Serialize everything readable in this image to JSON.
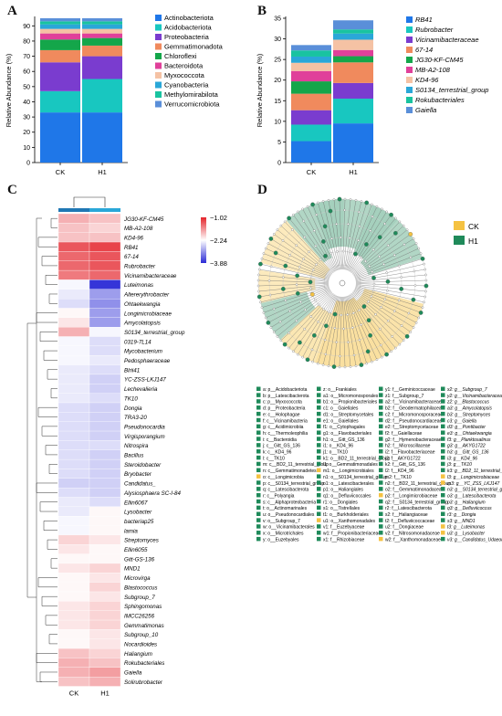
{
  "panel_letters": [
    "A",
    "B",
    "C",
    "D"
  ],
  "chart_data": [
    {
      "type": "bar",
      "subtype": "stacked",
      "panel": "A",
      "categories": [
        "CK",
        "H1"
      ],
      "ylabel": "Relative Abundance (%)",
      "ylim": [
        0,
        95
      ],
      "yticks": [
        0,
        10,
        20,
        30,
        40,
        50,
        60,
        70,
        80,
        90
      ],
      "legend_position": "right",
      "series": [
        {
          "name": "Actinobacteriota",
          "color": "#1f77e8",
          "values": [
            33,
            33
          ]
        },
        {
          "name": "Acidobacteriota",
          "color": "#18c7c0",
          "values": [
            14,
            22
          ]
        },
        {
          "name": "Proteobacteria",
          "color": "#7a3ccf",
          "values": [
            19,
            15
          ]
        },
        {
          "name": "Gemmatimonadota",
          "color": "#f08a5d",
          "values": [
            8,
            7
          ]
        },
        {
          "name": "Chloroflexi",
          "color": "#14a64a",
          "values": [
            7,
            5
          ]
        },
        {
          "name": "Bacteroidota",
          "color": "#e0409a",
          "values": [
            4,
            3
          ]
        },
        {
          "name": "Myxococcota",
          "color": "#f5c2a4",
          "values": [
            3,
            3
          ]
        },
        {
          "name": "Cyanobacteria",
          "color": "#2aa7d8",
          "values": [
            3,
            3
          ]
        },
        {
          "name": "Methylomirabilota",
          "color": "#19c3a0",
          "values": [
            2,
            2
          ]
        },
        {
          "name": "Verrucomicrobiota",
          "color": "#5a8fd9",
          "values": [
            2,
            2
          ]
        }
      ]
    },
    {
      "type": "bar",
      "subtype": "stacked",
      "panel": "B",
      "categories": [
        "CK",
        "H1"
      ],
      "ylabel": "Relative Abundance (%)",
      "ylim": [
        0,
        35
      ],
      "yticks": [
        0,
        5,
        10,
        15,
        20,
        25,
        30,
        35
      ],
      "legend_position": "right",
      "series": [
        {
          "name": "RB41",
          "color": "#1f77e8",
          "values": [
            5.2,
            9.5
          ]
        },
        {
          "name": "Rubrobacter",
          "color": "#18c7c0",
          "values": [
            4.0,
            6.0
          ]
        },
        {
          "name": "Vicinamibacteraceae",
          "color": "#7a3ccf",
          "values": [
            3.5,
            3.8
          ]
        },
        {
          "name": "67-14",
          "color": "#f08a5d",
          "values": [
            4.0,
            5.0
          ]
        },
        {
          "name": "JG30-KF-CM45",
          "color": "#14a64a",
          "values": [
            3.0,
            1.5
          ]
        },
        {
          "name": "MB-A2-108",
          "color": "#e0409a",
          "values": [
            2.5,
            1.5
          ]
        },
        {
          "name": "KD4-96",
          "color": "#f5c2a4",
          "values": [
            2.0,
            2.5
          ]
        },
        {
          "name": "S0134_terrestrial_group",
          "color": "#2aa7d8",
          "values": [
            1.5,
            1.5
          ]
        },
        {
          "name": "Rokubacteriales",
          "color": "#19c3a0",
          "values": [
            1.5,
            1.0
          ]
        },
        {
          "name": "Gaiella",
          "color": "#5a8fd9",
          "values": [
            1.3,
            2.2
          ]
        }
      ]
    },
    {
      "type": "heatmap",
      "panel": "C",
      "columns": [
        "CK",
        "H1"
      ],
      "colorbar_ticks": [
        -1.02,
        -2.24,
        -3.88
      ],
      "colorbar_colors": [
        "#e4242b",
        "#ffffff",
        "#2b2bd6"
      ],
      "rows": [
        {
          "name": "JG30-KF-CM45",
          "values": [
            -1.8,
            -1.9
          ]
        },
        {
          "name": "MB-A2-108",
          "values": [
            -1.9,
            -2.0
          ]
        },
        {
          "name": "KD4-96",
          "values": [
            -1.9,
            -1.9
          ]
        },
        {
          "name": "RB41",
          "values": [
            -1.3,
            -1.2
          ]
        },
        {
          "name": "67-14",
          "values": [
            -1.4,
            -1.3
          ]
        },
        {
          "name": "Rubrobacter",
          "values": [
            -1.4,
            -1.3
          ]
        },
        {
          "name": "Vicinamibacteraceae",
          "values": [
            -1.5,
            -1.4
          ]
        },
        {
          "name": "Luteimonas",
          "values": [
            -2.3,
            -3.8
          ]
        },
        {
          "name": "Altererythrobacter",
          "values": [
            -2.4,
            -3.0
          ]
        },
        {
          "name": "Ohtaekwangia",
          "values": [
            -2.5,
            -3.1
          ]
        },
        {
          "name": "Longimicrobiaceae",
          "values": [
            -2.2,
            -3.0
          ]
        },
        {
          "name": "Amycolatopsis",
          "values": [
            -2.1,
            -3.0
          ]
        },
        {
          "name": "S0134_terrestrial_group",
          "values": [
            -1.8,
            -2.3
          ]
        },
        {
          "name": "0319-7L14",
          "values": [
            -2.3,
            -2.5
          ]
        },
        {
          "name": "Mycobacterium",
          "values": [
            -2.3,
            -2.5
          ]
        },
        {
          "name": "Pedosphaeraceae",
          "values": [
            -2.3,
            -2.4
          ]
        },
        {
          "name": "Blrii41",
          "values": [
            -2.4,
            -2.5
          ]
        },
        {
          "name": "YC-ZSS-LKJ147",
          "values": [
            -2.4,
            -2.6
          ]
        },
        {
          "name": "Lechevalieria",
          "values": [
            -2.4,
            -2.6
          ]
        },
        {
          "name": "TK10",
          "values": [
            -2.4,
            -2.5
          ]
        },
        {
          "name": "Dongia",
          "values": [
            -2.5,
            -2.6
          ]
        },
        {
          "name": "TRA3-20",
          "values": [
            -2.5,
            -2.6
          ]
        },
        {
          "name": "Pseudonocardia",
          "values": [
            -2.5,
            -2.6
          ]
        },
        {
          "name": "Virgisporangium",
          "values": [
            -2.5,
            -2.6
          ]
        },
        {
          "name": "Nitrospira",
          "values": [
            -2.5,
            -2.5
          ]
        },
        {
          "name": "Bacillus",
          "values": [
            -2.5,
            -2.6
          ]
        },
        {
          "name": "Steroidobacter",
          "values": [
            -2.5,
            -2.6
          ]
        },
        {
          "name": "Bryobacter",
          "values": [
            -2.5,
            -2.6
          ]
        },
        {
          "name": "Candidatus_",
          "values": [
            -2.6,
            -2.6
          ]
        },
        {
          "name": "Alysiosphaera SC-I-84",
          "values": [
            -2.5,
            -2.6
          ]
        },
        {
          "name": "Ellin6067",
          "values": [
            -2.4,
            -2.5
          ]
        },
        {
          "name": "Lysobacter",
          "values": [
            -2.4,
            -2.2
          ]
        },
        {
          "name": "bacteriap25",
          "values": [
            -2.3,
            -2.2
          ]
        },
        {
          "name": "lamia",
          "values": [
            -2.3,
            -2.2
          ]
        },
        {
          "name": "Streptomyces",
          "values": [
            -2.0,
            -2.1
          ]
        },
        {
          "name": "Ellin6055",
          "values": [
            -2.1,
            -2.2
          ]
        },
        {
          "name": "Gitt-GS-136",
          "values": [
            -2.2,
            -2.2
          ]
        },
        {
          "name": "MND1",
          "values": [
            -2.1,
            -2.0
          ]
        },
        {
          "name": "Microvirga",
          "values": [
            -2.2,
            -2.1
          ]
        },
        {
          "name": "Blastococcus",
          "values": [
            -2.2,
            -2.0
          ]
        },
        {
          "name": "Subgroup_7",
          "values": [
            -2.2,
            -2.1
          ]
        },
        {
          "name": "Sphingomonas",
          "values": [
            -2.1,
            -2.0
          ]
        },
        {
          "name": "IMCC26256",
          "values": [
            -2.1,
            -2.0
          ]
        },
        {
          "name": "Gemmatimonas",
          "values": [
            -2.1,
            -2.0
          ]
        },
        {
          "name": "Subgroup_10",
          "values": [
            -2.2,
            -2.1
          ]
        },
        {
          "name": "Nocardioides",
          "values": [
            -2.2,
            -2.1
          ]
        },
        {
          "name": "Haliangium",
          "values": [
            -1.9,
            -2.0
          ]
        },
        {
          "name": "Rokubacteriales",
          "values": [
            -1.8,
            -1.9
          ]
        },
        {
          "name": "Gaiella",
          "values": [
            -1.8,
            -1.7
          ]
        },
        {
          "name": "Solirubrobacter",
          "values": [
            -1.9,
            -1.8
          ]
        }
      ]
    },
    {
      "type": "cladogram",
      "panel": "D",
      "groups": [
        {
          "name": "CK",
          "color": "#f5c242"
        },
        {
          "name": "H1",
          "color": "#1f8a5a"
        }
      ],
      "clade_labels": [
        "a: p__Acidobacteriota",
        "b: p__Latescibacterota",
        "c: p__Myxococcota",
        "d: p__Proteobacteria",
        "e: c__Holophagae",
        "f: c__Vicinamibacteria",
        "g: c__Acidimicrobiia",
        "h: c__Thermoleophilia",
        "i: c__Bacteroidia",
        "j: c__Gitt_GS_136",
        "k: c__KD4_96",
        "l: c__TK10",
        "m: c__BD2_11_terrestrial_group",
        "n: c__Gemmatimonadetes",
        "o: c__Longimicrobia",
        "p: c__S0134_terrestrial_group",
        "q: c__Latescibacterota",
        "r: c__Polyangia",
        "s: c__Alphaproteobacteria",
        "t: o__Actinomarinales",
        "u: o__Pseudonocardiales",
        "v: o__Subgroup_7",
        "w: o__Vicinamibacterales",
        "x: o__Microtrichales",
        "y: o__Euzebyales",
        "z: o__Frankiales",
        "a1: o__Micromonosporales",
        "b1: o__Propionibacteriales",
        "c1: o__Gaiellales",
        "d1: o__Streptomycetales",
        "e1: o__Gaiellales",
        "f1: o__Cytophagales",
        "g1: o__Flavobacteriales",
        "h1: o__Gitt_GS_136",
        "i1: o__KD4_96",
        "j1: o__TK10",
        "k1: o__BD2_11_terrestrial_group",
        "l1: o__Gemmatimonadales",
        "m1: o__Longimicrobiales",
        "n1: o__S0134_terrestrial_group",
        "o1: o__Latescibacterales",
        "p1: o__Haliangiales",
        "q1: o__Defluviicoccales",
        "r1: o__Dongiales",
        "s1: o__Tistrellales",
        "t1: o__Burkholderiales",
        "u1: o__Xanthomonadales",
        "v1: f__Euzebyaceae",
        "w1: f__Propionibacteriaceae",
        "x1: f__Rhizobiaceae",
        "y1: f__Geminicoccaceae",
        "z1: f__Subgroup_7",
        "a2: f__Vicinamibacteraceae",
        "b2: f__Geodermatophilaceae",
        "c2: f__Micromonosporaceae",
        "d2: f__Pseudonocardiaceae",
        "e2: f__Streptomycetaceae",
        "f2: f__Gaiellaceae",
        "g2: f__Hymenobacteraceae",
        "h2: f__Microscillaceae",
        "i2: f__Flavobacteriaceae",
        "j2: f__AKYG1722",
        "k2: f__Gitt_GS_136",
        "l2: f__KD4_96",
        "m2: f__TK10",
        "n2: f__BD2_11_terrestrial_group",
        "o2: f__Gemmatimonadaceae",
        "p2: f__Longimicrobiaceae",
        "q2: f__S0134_terrestrial_group",
        "r2: f__Latescibacterota",
        "s2: f__Haliangiaceae",
        "t2: f__Defluviicoccaceae",
        "u2: f__Dongiaceae",
        "v2: f__Nitrosomonadaceae",
        "w2: f__Xanthomonadaceae",
        "x2: g__Subgroup_7",
        "y2: g__Vicinamibacteraceae",
        "z2: g__Blastococcus",
        "a3: g__Amycolatopsis",
        "b3: g__Streptomyces",
        "c3: g__Gaiella",
        "d3: g__Pontibacter",
        "e3: g__Ohtaekwangia",
        "f3: g__Planktosalinus",
        "g3: g__AKYG1722",
        "h3: g__Gitt_GS_136",
        "i3: g__KD4_96",
        "j3: g__TK10",
        "k3: g__BD2_11_terrestrial_group",
        "l3: g__Longimicrobiaceae",
        "m3: g__YC_ZSS_LKJ147",
        "n3: g__S0134_terrestrial_group",
        "o3: g__Latescibacterota",
        "p3: g__Haliangium",
        "q3: g__Defluviicoccus",
        "r3: g__Dongia",
        "s3: g__MND1",
        "t3: g__Luteimonas",
        "u3: g__Lysobacter",
        "v3: g__Candidatus_Udaeobacter"
      ],
      "label_group": [
        "H1",
        "H1",
        "H1",
        "H1",
        "H1",
        "H1",
        "H1",
        "H1",
        "H1",
        "H1",
        "H1",
        "H1",
        "H1",
        "H1",
        "CK",
        "H1",
        "H1",
        "H1",
        "H1",
        "H1",
        "H1",
        "H1",
        "H1",
        "H1",
        "H1",
        "H1",
        "H1",
        "H1",
        "H1",
        "H1",
        "H1",
        "H1",
        "H1",
        "H1",
        "H1",
        "H1",
        "H1",
        "H1",
        "CK",
        "H1",
        "H1",
        "H1",
        "H1",
        "H1",
        "H1",
        "H1",
        "CK",
        "H1",
        "H1",
        "H1",
        "H1",
        "H1",
        "H1",
        "H1",
        "H1",
        "H1",
        "H1",
        "H1",
        "H1",
        "H1",
        "H1",
        "H1",
        "H1",
        "H1",
        "H1",
        "H1",
        "H1",
        "CK",
        "H1",
        "H1",
        "H1",
        "H1",
        "H1",
        "H1",
        "CK",
        "H1",
        "H1",
        "H1",
        "H1",
        "H1",
        "H1",
        "H1",
        "H1",
        "H1",
        "H1",
        "H1",
        "H1",
        "H1",
        "H1",
        "CK",
        "CK",
        "H1",
        "H1",
        "H1",
        "H1",
        "H1",
        "H1",
        "CK",
        "CK",
        "H1"
      ]
    }
  ]
}
